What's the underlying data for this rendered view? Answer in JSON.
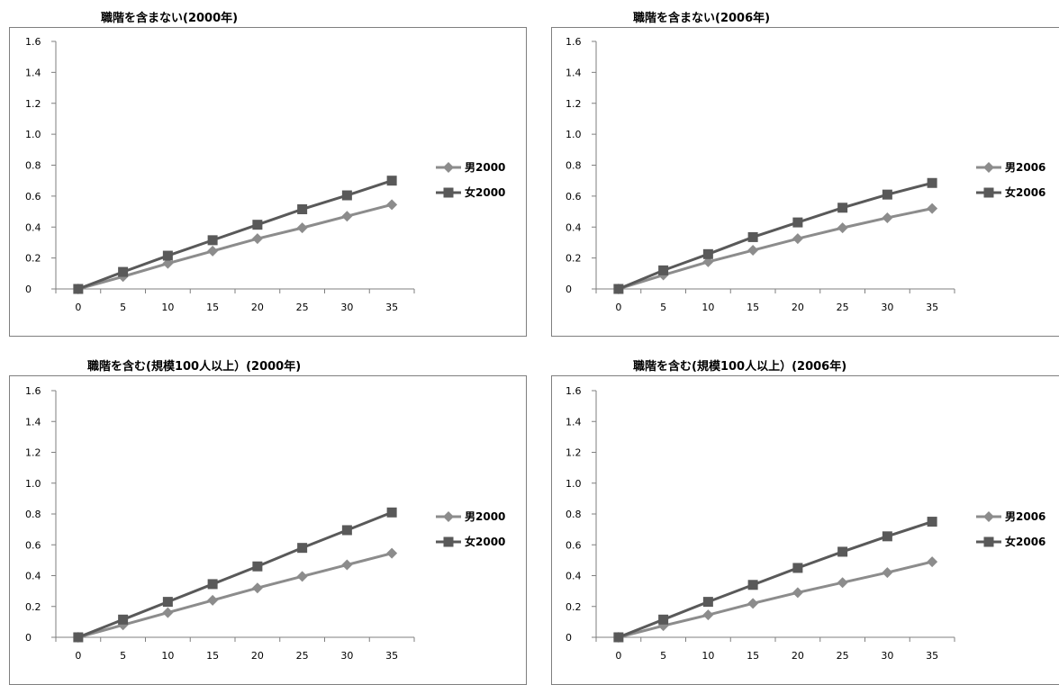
{
  "colors": {
    "male": "#8c8c8c",
    "female": "#595959",
    "axis": "#7f7f7f",
    "frame": "#7f7f7f"
  },
  "chart_data": [
    {
      "type": "line",
      "title": "職階を含まない(2000年)",
      "x": [
        0,
        5,
        10,
        15,
        20,
        25,
        30,
        35
      ],
      "ylim": [
        0,
        1.6
      ],
      "yticks": [
        "0",
        "0.2",
        "0.4",
        "0.6",
        "0.8",
        "1.0",
        "1.2",
        "1.4",
        "1.6"
      ],
      "xticks": [
        "0",
        "5",
        "10",
        "15",
        "20",
        "25",
        "30",
        "35"
      ],
      "grid": false,
      "legend_position": "right",
      "series": [
        {
          "name": "男2000",
          "marker": "diamond",
          "values": [
            0,
            0.08,
            0.165,
            0.245,
            0.325,
            0.395,
            0.47,
            0.545
          ]
        },
        {
          "name": "女2000",
          "marker": "square",
          "values": [
            0,
            0.11,
            0.215,
            0.315,
            0.415,
            0.515,
            0.605,
            0.7
          ]
        }
      ]
    },
    {
      "type": "line",
      "title": "職階を含まない(2006年)",
      "x": [
        0,
        5,
        10,
        15,
        20,
        25,
        30,
        35
      ],
      "ylim": [
        0,
        1.6
      ],
      "yticks": [
        "0",
        "0.2",
        "0.4",
        "0.6",
        "0.8",
        "1.0",
        "1.2",
        "1.4",
        "1.6"
      ],
      "xticks": [
        "0",
        "5",
        "10",
        "15",
        "20",
        "25",
        "30",
        "35"
      ],
      "grid": false,
      "legend_position": "right",
      "series": [
        {
          "name": "男2006",
          "marker": "diamond",
          "values": [
            0,
            0.09,
            0.175,
            0.25,
            0.325,
            0.395,
            0.46,
            0.52
          ]
        },
        {
          "name": "女2006",
          "marker": "square",
          "values": [
            0,
            0.12,
            0.225,
            0.335,
            0.43,
            0.525,
            0.61,
            0.685
          ]
        }
      ]
    },
    {
      "type": "line",
      "title": "職階を含む(規模100人以上）(2000年)",
      "x": [
        0,
        5,
        10,
        15,
        20,
        25,
        30,
        35
      ],
      "ylim": [
        0,
        1.6
      ],
      "yticks": [
        "0",
        "0.2",
        "0.4",
        "0.6",
        "0.8",
        "1.0",
        "1.2",
        "1.4",
        "1.6"
      ],
      "xticks": [
        "0",
        "5",
        "10",
        "15",
        "20",
        "25",
        "30",
        "35"
      ],
      "grid": false,
      "legend_position": "right",
      "series": [
        {
          "name": "男2000",
          "marker": "diamond",
          "values": [
            0,
            0.08,
            0.16,
            0.24,
            0.32,
            0.395,
            0.47,
            0.545
          ]
        },
        {
          "name": "女2000",
          "marker": "square",
          "values": [
            0,
            0.115,
            0.23,
            0.345,
            0.46,
            0.58,
            0.695,
            0.81
          ]
        }
      ]
    },
    {
      "type": "line",
      "title": "職階を含む(規模100人以上）(2006年)",
      "x": [
        0,
        5,
        10,
        15,
        20,
        25,
        30,
        35
      ],
      "ylim": [
        0,
        1.6
      ],
      "yticks": [
        "0",
        "0.2",
        "0.4",
        "0.6",
        "0.8",
        "1.0",
        "1.2",
        "1.4",
        "1.6"
      ],
      "xticks": [
        "0",
        "5",
        "10",
        "15",
        "20",
        "25",
        "30",
        "35"
      ],
      "grid": false,
      "legend_position": "right",
      "series": [
        {
          "name": "男2006",
          "marker": "diamond",
          "values": [
            0,
            0.075,
            0.145,
            0.22,
            0.29,
            0.355,
            0.42,
            0.49
          ]
        },
        {
          "name": "女2006",
          "marker": "square",
          "values": [
            0,
            0.115,
            0.23,
            0.34,
            0.45,
            0.555,
            0.655,
            0.75
          ]
        }
      ]
    }
  ]
}
